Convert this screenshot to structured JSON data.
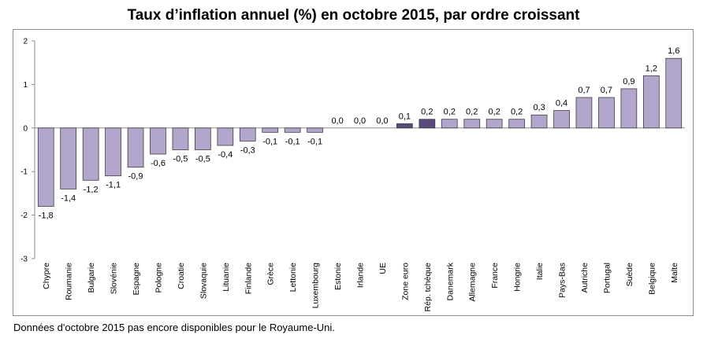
{
  "chart_data": {
    "type": "bar",
    "title": "Taux d’inflation annuel (%) en octobre 2015, par ordre croissant",
    "xlabel": "",
    "ylabel": "",
    "ylim": [
      -3,
      2
    ],
    "yticks": [
      2,
      1,
      0,
      -1,
      -2,
      -3
    ],
    "grid": false,
    "categories": [
      "Chypre",
      "Roumanie",
      "Bulgarie",
      "Slovénie",
      "Espagne",
      "Pologne",
      "Croatie",
      "Slovaquie",
      "Lituanie",
      "Finlande",
      "Grèce",
      "Lettonie",
      "Luxembourg",
      "Estonie",
      "Irlande",
      "UE",
      "Zone euro",
      "Rép. tchèque",
      "Danemark",
      "Allemagne",
      "France",
      "Hongrie",
      "Italie",
      "Pays-Bas",
      "Autriche",
      "Portugal",
      "Suède",
      "Belgique",
      "Malte"
    ],
    "values": [
      -1.8,
      -1.4,
      -1.2,
      -1.1,
      -0.9,
      -0.6,
      -0.5,
      -0.5,
      -0.4,
      -0.3,
      -0.1,
      -0.1,
      -0.1,
      0.0,
      0.0,
      0.0,
      0.1,
      0.2,
      0.2,
      0.2,
      0.2,
      0.2,
      0.3,
      0.4,
      0.7,
      0.7,
      0.9,
      1.2,
      1.6
    ],
    "value_labels": [
      "-1,8",
      "-1,4",
      "-1,2",
      "-1,1",
      "-0,9",
      "-0,6",
      "-0,5",
      "-0,5",
      "-0,4",
      "-0,3",
      "-0,1",
      "-0,1",
      "-0,1",
      "0,0",
      "0,0",
      "0,0",
      "0,1",
      "0,2",
      "0,2",
      "0,2",
      "0,2",
      "0,2",
      "0,3",
      "0,4",
      "0,7",
      "0,7",
      "0,9",
      "1,2",
      "1,6"
    ],
    "highlight": {
      "Zone euro": "#5b4a80",
      "Rép. tchèque": "#5b4a80"
    },
    "colors": {
      "bar": "#b3a6cc",
      "bar_highlight": "#5b4a80",
      "bar_stroke": "#3c3c3c",
      "axis": "#8c8c8c"
    }
  },
  "footnote": "Données d'octobre 2015 pas encore disponibles pour le Royaume-Uni."
}
